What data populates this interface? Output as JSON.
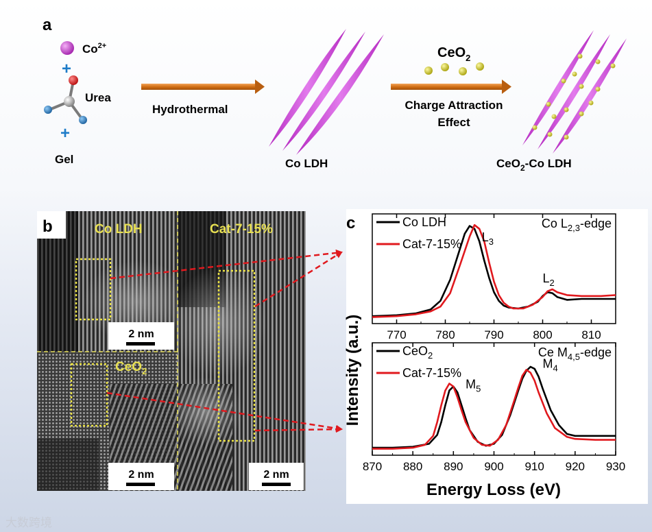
{
  "panel_a": {
    "label": "a",
    "co_ion": "Co",
    "co_charge": "2+",
    "urea": "Urea",
    "gel": "Gel",
    "plus": "+",
    "step1": "Hydrothermal",
    "product1": "Co LDH",
    "ceo2_main": "CeO",
    "ceo2_sub": "2",
    "step2_line1": "Charge Attraction",
    "step2_line2": "Effect",
    "product2_pre": "CeO",
    "product2_sub": "2",
    "product2_post": "-Co LDH"
  },
  "panel_b": {
    "label": "b",
    "tl_title": "Co LDH",
    "tr_title": "Cat-7-15%",
    "bl_title_pre": "CeO",
    "bl_title_sub": "2",
    "scale": "2 nm"
  },
  "panel_c": {
    "label": "c"
  },
  "colors": {
    "black_series": "#000000",
    "red_series": "#e0191e",
    "ldh": "#c83cd2",
    "ceo2": "#d9d31b",
    "arrow": "#d97b20"
  },
  "chart_data": [
    {
      "type": "line",
      "title": "Co L2,3-edge",
      "title_main": "Co L",
      "title_sub": "2,3",
      "title_post": "-edge",
      "xlim": [
        765,
        815
      ],
      "xticks": [
        770,
        780,
        790,
        800,
        810
      ],
      "ylabel": "Intensity (a.u.)",
      "legend": [
        "Co LDH",
        "Cat-7-15%"
      ],
      "peak_labels": [
        {
          "main": "L",
          "sub": "3",
          "x": 787.5,
          "y": 0.8
        },
        {
          "main": "L",
          "sub": "2",
          "x": 800,
          "y": 0.37
        }
      ],
      "series": [
        {
          "name": "Co LDH",
          "x": [
            765,
            770,
            774,
            777,
            779,
            781,
            783,
            784,
            785,
            786,
            787,
            788,
            789,
            790,
            791,
            792,
            793,
            795,
            797,
            799,
            800,
            801,
            802,
            803,
            805,
            808,
            812,
            815
          ],
          "y": [
            0.02,
            0.03,
            0.05,
            0.09,
            0.18,
            0.4,
            0.72,
            0.88,
            0.96,
            0.93,
            0.8,
            0.6,
            0.42,
            0.27,
            0.18,
            0.13,
            0.11,
            0.1,
            0.12,
            0.17,
            0.23,
            0.27,
            0.26,
            0.22,
            0.19,
            0.2,
            0.2,
            0.2
          ]
        },
        {
          "name": "Cat-7-15%",
          "x": [
            765,
            770,
            774,
            777,
            779,
            781,
            783,
            785,
            786,
            787,
            788,
            789,
            790,
            791,
            792,
            793,
            794,
            796,
            798,
            800,
            801,
            802,
            803,
            805,
            808,
            812,
            815
          ],
          "y": [
            0.01,
            0.02,
            0.04,
            0.07,
            0.12,
            0.26,
            0.55,
            0.85,
            0.97,
            0.93,
            0.8,
            0.58,
            0.38,
            0.24,
            0.16,
            0.12,
            0.1,
            0.1,
            0.14,
            0.22,
            0.28,
            0.3,
            0.27,
            0.24,
            0.23,
            0.23,
            0.24
          ]
        }
      ]
    },
    {
      "type": "line",
      "title": "Ce M4,5-edge",
      "title_main": "Ce M",
      "title_sub": "4,5",
      "title_post": "-edge",
      "xlim": [
        870,
        930
      ],
      "xticks": [
        870,
        880,
        890,
        900,
        910,
        920,
        930
      ],
      "xlabel": "Energy Loss (eV)",
      "legend": [
        "CeO2",
        "Cat-7-15%"
      ],
      "legend_sub": [
        {
          "main": "CeO",
          "sub": "2"
        },
        {
          "main": "Cat-7-15%",
          "sub": ""
        }
      ],
      "peak_labels": [
        {
          "main": "M",
          "sub": "5",
          "x": 893,
          "y": 0.62
        },
        {
          "main": "M",
          "sub": "4",
          "x": 912,
          "y": 0.83
        }
      ],
      "series": [
        {
          "name": "CeO2",
          "x": [
            870,
            875,
            880,
            884,
            886,
            887,
            888,
            889,
            890,
            891,
            892,
            893,
            894,
            896,
            898,
            900,
            902,
            904,
            906,
            907,
            908,
            909,
            910,
            911,
            912,
            914,
            916,
            918,
            920,
            925,
            930
          ],
          "y": [
            0.02,
            0.02,
            0.03,
            0.06,
            0.15,
            0.28,
            0.45,
            0.6,
            0.64,
            0.58,
            0.45,
            0.32,
            0.2,
            0.08,
            0.04,
            0.06,
            0.15,
            0.35,
            0.6,
            0.72,
            0.8,
            0.84,
            0.82,
            0.74,
            0.62,
            0.4,
            0.25,
            0.16,
            0.14,
            0.14,
            0.14
          ]
        },
        {
          "name": "Cat-7-15%",
          "x": [
            870,
            875,
            880,
            883,
            885,
            886,
            887,
            888,
            889,
            890,
            891,
            892,
            893,
            895,
            897,
            899,
            901,
            903,
            905,
            906,
            907,
            908,
            909,
            910,
            911,
            913,
            915,
            918,
            920,
            925,
            930
          ],
          "y": [
            0.01,
            0.01,
            0.02,
            0.05,
            0.14,
            0.28,
            0.45,
            0.6,
            0.67,
            0.64,
            0.53,
            0.4,
            0.28,
            0.12,
            0.05,
            0.04,
            0.1,
            0.25,
            0.5,
            0.63,
            0.75,
            0.81,
            0.78,
            0.7,
            0.58,
            0.37,
            0.22,
            0.13,
            0.11,
            0.1,
            0.1
          ]
        }
      ]
    }
  ],
  "watermark": "大数跨境"
}
